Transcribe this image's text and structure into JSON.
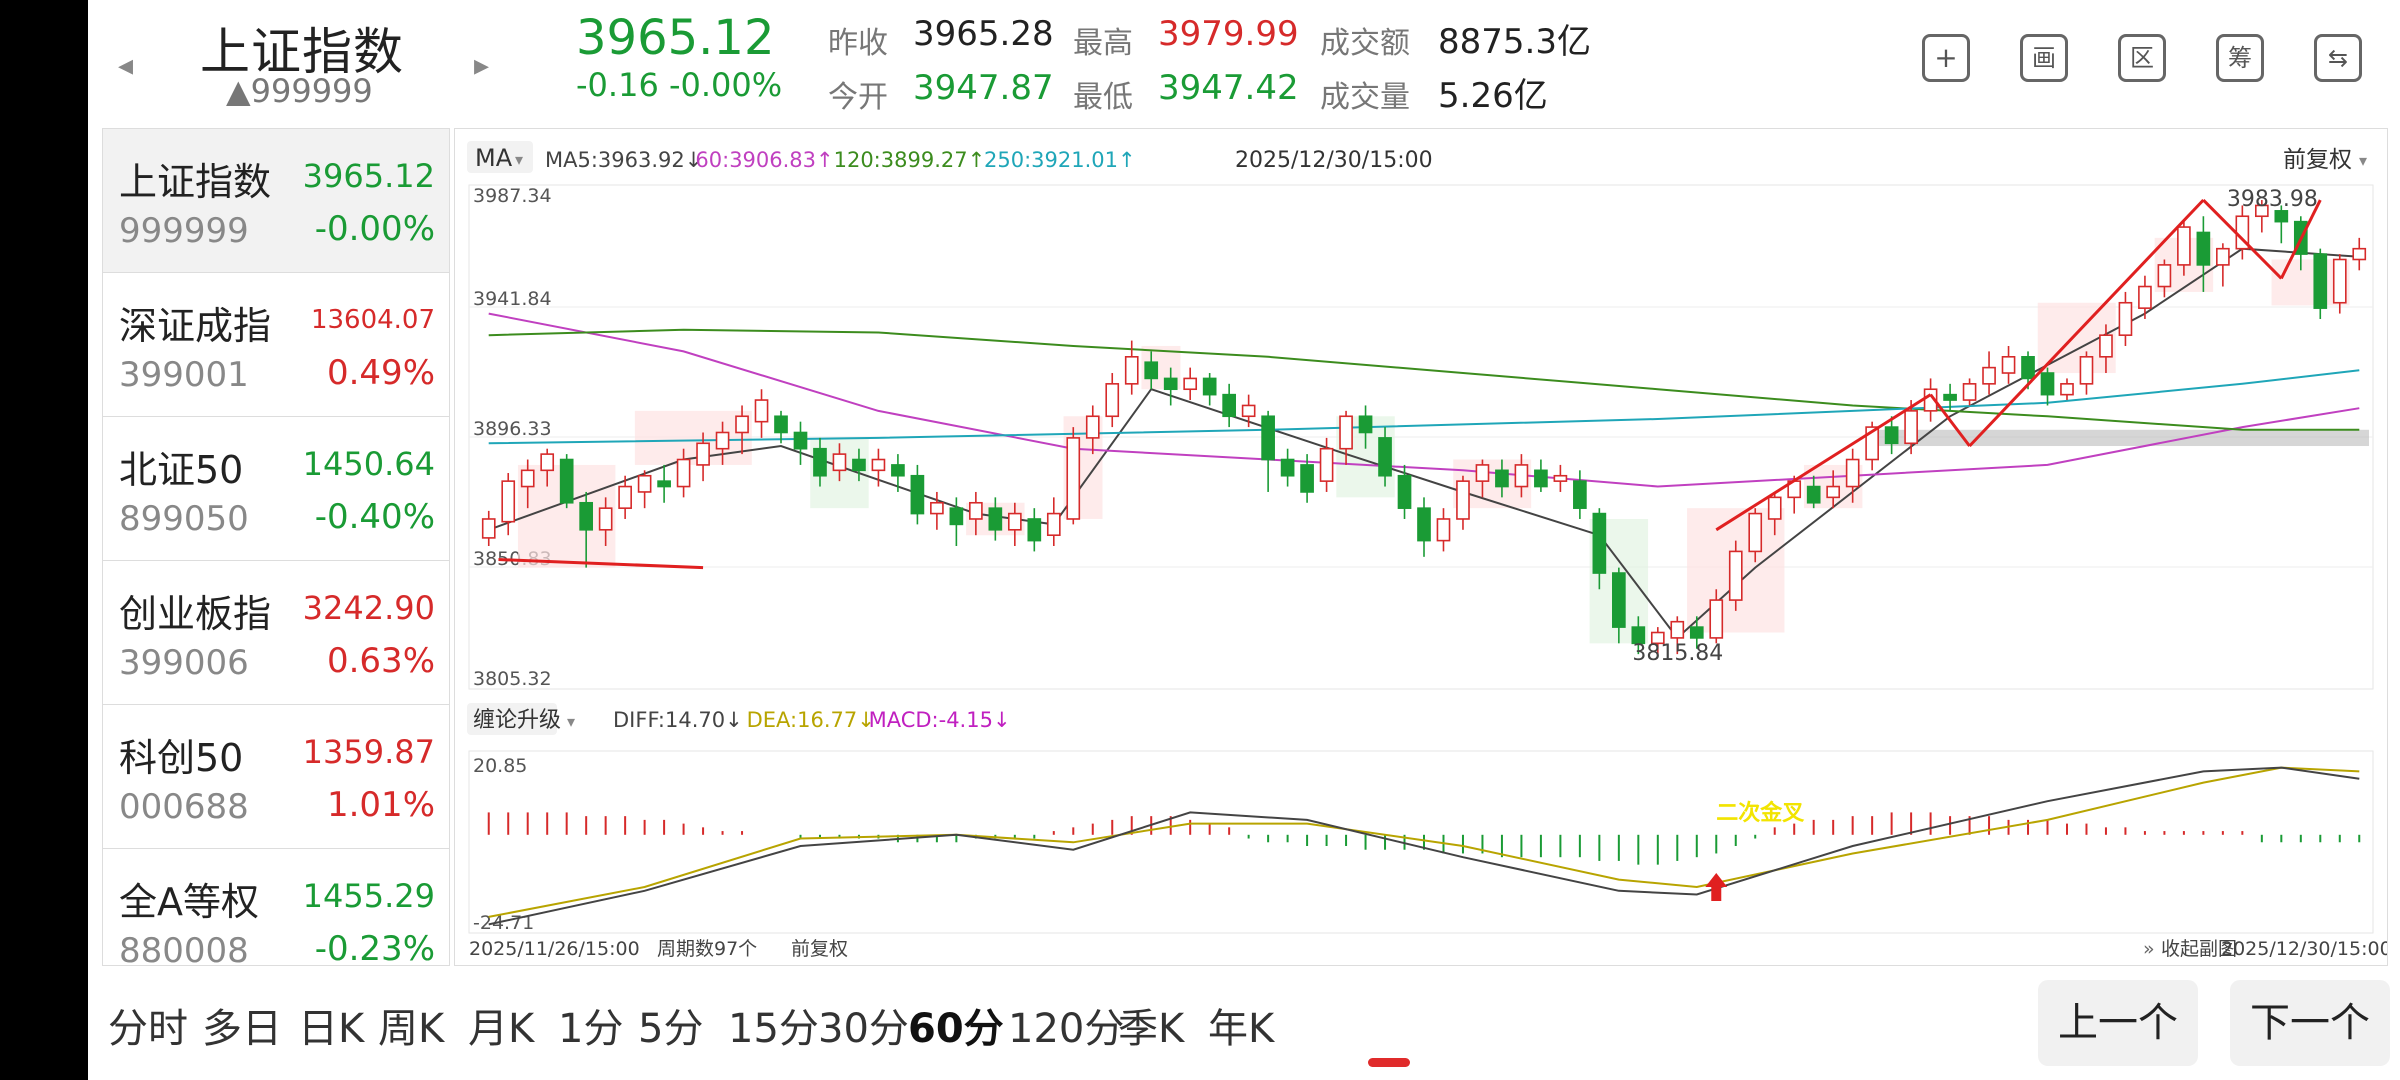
{
  "header": {
    "title": "上证指数",
    "code": "▲999999",
    "price": "3965.12",
    "change": "-0.16 -0.00%",
    "stats": [
      {
        "label": "昨收",
        "value": "3965.28",
        "color": "#222222"
      },
      {
        "label": "最高",
        "value": "3979.99",
        "color": "#d62a2a"
      },
      {
        "label": "成交额",
        "value": "8875.3亿",
        "color": "#222222"
      },
      {
        "label": "今开",
        "value": "3947.87",
        "color": "#1a9b35"
      },
      {
        "label": "最低",
        "value": "3947.42",
        "color": "#1a9b35"
      },
      {
        "label": "成交量",
        "value": "5.26亿",
        "color": "#222222"
      }
    ],
    "tools": [
      "plus-icon",
      "draw-icon",
      "range-icon",
      "chip-icon",
      "switch-device-icon"
    ],
    "tool_labels": [
      "+",
      "画",
      "区",
      "筹",
      "⇆"
    ]
  },
  "sidebar": {
    "items": [
      {
        "name": "上证指数",
        "price": "3965.12",
        "code": "999999",
        "pct": "-0.00%",
        "dir": "down"
      },
      {
        "name": "深证成指",
        "price": "13604.07",
        "code": "399001",
        "pct": "0.49%",
        "dir": "up"
      },
      {
        "name": "北证50",
        "price": "1450.64",
        "code": "899050",
        "pct": "-0.40%",
        "dir": "down"
      },
      {
        "name": "创业板指",
        "price": "3242.90",
        "code": "399006",
        "pct": "0.63%",
        "dir": "up"
      },
      {
        "name": "科创50",
        "price": "1359.87",
        "code": "000688",
        "pct": "1.01%",
        "dir": "up"
      },
      {
        "name": "全A等权",
        "price": "1455.29",
        "code": "880008",
        "pct": "-0.23%",
        "dir": "down"
      }
    ]
  },
  "chart_data": {
    "type": "candlestick",
    "ma_selector": "MA",
    "ma_legend": [
      {
        "text": "MA5:3963.92↓",
        "color": "#444444"
      },
      {
        "text": "60:3906.83↑",
        "color": "#c040c0"
      },
      {
        "text": "120:3899.27↑",
        "color": "#3c8c1e"
      },
      {
        "text": "250:3921.01↑",
        "color": "#1fa6b8"
      }
    ],
    "datetime": "2025/12/30/15:00",
    "adjust_mode": "前复权",
    "y_ticks": [
      "3987.34",
      "3941.84",
      "3896.33",
      "3850.83",
      "3805.32"
    ],
    "y_min": 3805.32,
    "y_max": 3987.34,
    "high_label": "3983.98",
    "low_label": "3815.84",
    "candles": [
      [
        3859,
        3866,
        3856,
        3869
      ],
      [
        3865,
        3880,
        3860,
        3883
      ],
      [
        3878,
        3884,
        3870,
        3888
      ],
      [
        3884,
        3890,
        3878,
        3892
      ],
      [
        3888,
        3872,
        3870,
        3890
      ],
      [
        3872,
        3862,
        3848,
        3876
      ],
      [
        3862,
        3870,
        3856,
        3874
      ],
      [
        3870,
        3878,
        3866,
        3882
      ],
      [
        3876,
        3882,
        3870,
        3884
      ],
      [
        3880,
        3878,
        3872,
        3886
      ],
      [
        3878,
        3888,
        3874,
        3892
      ],
      [
        3886,
        3894,
        3880,
        3898
      ],
      [
        3892,
        3898,
        3886,
        3902
      ],
      [
        3898,
        3904,
        3890,
        3908
      ],
      [
        3902,
        3910,
        3896,
        3914
      ],
      [
        3904,
        3898,
        3894,
        3906
      ],
      [
        3898,
        3892,
        3886,
        3902
      ],
      [
        3892,
        3882,
        3878,
        3896
      ],
      [
        3884,
        3890,
        3880,
        3894
      ],
      [
        3888,
        3884,
        3880,
        3892
      ],
      [
        3884,
        3888,
        3878,
        3892
      ],
      [
        3886,
        3882,
        3876,
        3890
      ],
      [
        3882,
        3868,
        3864,
        3886
      ],
      [
        3868,
        3872,
        3862,
        3876
      ],
      [
        3870,
        3864,
        3856,
        3874
      ],
      [
        3866,
        3872,
        3860,
        3876
      ],
      [
        3870,
        3862,
        3858,
        3874
      ],
      [
        3862,
        3868,
        3856,
        3872
      ],
      [
        3866,
        3858,
        3854,
        3870
      ],
      [
        3860,
        3868,
        3856,
        3874
      ],
      [
        3866,
        3896,
        3864,
        3900
      ],
      [
        3896,
        3904,
        3890,
        3908
      ],
      [
        3904,
        3916,
        3900,
        3920
      ],
      [
        3916,
        3926,
        3912,
        3932
      ],
      [
        3924,
        3918,
        3914,
        3928
      ],
      [
        3918,
        3914,
        3908,
        3922
      ],
      [
        3914,
        3918,
        3910,
        3922
      ],
      [
        3918,
        3912,
        3908,
        3920
      ],
      [
        3912,
        3904,
        3900,
        3916
      ],
      [
        3904,
        3908,
        3900,
        3912
      ],
      [
        3904,
        3888,
        3876,
        3906
      ],
      [
        3888,
        3882,
        3878,
        3892
      ],
      [
        3886,
        3876,
        3872,
        3890
      ],
      [
        3880,
        3892,
        3876,
        3896
      ],
      [
        3892,
        3904,
        3886,
        3906
      ],
      [
        3904,
        3898,
        3892,
        3908
      ],
      [
        3896,
        3882,
        3878,
        3900
      ],
      [
        3882,
        3870,
        3866,
        3886
      ],
      [
        3870,
        3858,
        3852,
        3874
      ],
      [
        3858,
        3866,
        3854,
        3870
      ],
      [
        3866,
        3880,
        3862,
        3882
      ],
      [
        3880,
        3886,
        3874,
        3888
      ],
      [
        3884,
        3878,
        3874,
        3888
      ],
      [
        3878,
        3886,
        3874,
        3890
      ],
      [
        3884,
        3878,
        3876,
        3888
      ],
      [
        3880,
        3882,
        3876,
        3886
      ],
      [
        3880,
        3870,
        3866,
        3884
      ],
      [
        3868,
        3846,
        3840,
        3870
      ],
      [
        3846,
        3826,
        3820,
        3848
      ],
      [
        3826,
        3820,
        3816,
        3830
      ],
      [
        3820,
        3824,
        3816,
        3826
      ],
      [
        3822,
        3828,
        3816,
        3830
      ],
      [
        3826,
        3822,
        3818,
        3830
      ],
      [
        3822,
        3836,
        3820,
        3840
      ],
      [
        3836,
        3854,
        3832,
        3858
      ],
      [
        3854,
        3868,
        3850,
        3870
      ],
      [
        3866,
        3874,
        3860,
        3876
      ],
      [
        3874,
        3880,
        3868,
        3882
      ],
      [
        3878,
        3872,
        3870,
        3882
      ],
      [
        3874,
        3878,
        3870,
        3884
      ],
      [
        3878,
        3888,
        3872,
        3892
      ],
      [
        3888,
        3900,
        3884,
        3902
      ],
      [
        3900,
        3894,
        3890,
        3904
      ],
      [
        3894,
        3906,
        3890,
        3910
      ],
      [
        3906,
        3914,
        3902,
        3918
      ],
      [
        3912,
        3910,
        3906,
        3916
      ],
      [
        3910,
        3916,
        3908,
        3918
      ],
      [
        3916,
        3922,
        3912,
        3928
      ],
      [
        3920,
        3926,
        3916,
        3930
      ],
      [
        3926,
        3918,
        3914,
        3928
      ],
      [
        3920,
        3912,
        3908,
        3922
      ],
      [
        3912,
        3916,
        3910,
        3918
      ],
      [
        3916,
        3926,
        3912,
        3928
      ],
      [
        3926,
        3934,
        3920,
        3938
      ],
      [
        3934,
        3946,
        3930,
        3950
      ],
      [
        3944,
        3952,
        3940,
        3956
      ],
      [
        3952,
        3960,
        3948,
        3962
      ],
      [
        3960,
        3974,
        3956,
        3976
      ],
      [
        3972,
        3960,
        3950,
        3978
      ],
      [
        3960,
        3966,
        3952,
        3968
      ],
      [
        3966,
        3978,
        3962,
        3982
      ],
      [
        3978,
        3982,
        3972,
        3984
      ],
      [
        3980,
        3976,
        3968,
        3982
      ],
      [
        3976,
        3964,
        3958,
        3978
      ],
      [
        3964,
        3944,
        3940,
        3966
      ],
      [
        3946,
        3962,
        3942,
        3964
      ],
      [
        3962,
        3966,
        3958,
        3970
      ]
    ],
    "ma_series": [
      {
        "name": "MA5",
        "color": "#444444",
        "points": [
          [
            0,
            3862
          ],
          [
            10,
            3888
          ],
          [
            15,
            3893
          ],
          [
            25,
            3868
          ],
          [
            29,
            3864
          ],
          [
            34,
            3914
          ],
          [
            44,
            3890
          ],
          [
            50,
            3876
          ],
          [
            57,
            3860
          ],
          [
            61,
            3822
          ],
          [
            65,
            3848
          ],
          [
            75,
            3904
          ],
          [
            85,
            3942
          ],
          [
            90,
            3966
          ],
          [
            96,
            3963
          ]
        ]
      },
      {
        "name": "60",
        "color": "#c040c0",
        "points": [
          [
            0,
            3942
          ],
          [
            10,
            3928
          ],
          [
            20,
            3906
          ],
          [
            30,
            3892
          ],
          [
            40,
            3888
          ],
          [
            50,
            3884
          ],
          [
            60,
            3878
          ],
          [
            70,
            3882
          ],
          [
            80,
            3886
          ],
          [
            90,
            3900
          ],
          [
            96,
            3907
          ]
        ]
      },
      {
        "name": "120",
        "color": "#3c8c1e",
        "points": [
          [
            0,
            3934
          ],
          [
            10,
            3936
          ],
          [
            20,
            3935
          ],
          [
            30,
            3930
          ],
          [
            40,
            3926
          ],
          [
            50,
            3920
          ],
          [
            60,
            3914
          ],
          [
            70,
            3908
          ],
          [
            80,
            3904
          ],
          [
            90,
            3899
          ],
          [
            96,
            3899
          ]
        ]
      },
      {
        "name": "250",
        "color": "#1fa6b8",
        "points": [
          [
            0,
            3894
          ],
          [
            20,
            3896
          ],
          [
            40,
            3899
          ],
          [
            60,
            3903
          ],
          [
            70,
            3906
          ],
          [
            80,
            3909
          ],
          [
            90,
            3916
          ],
          [
            96,
            3921
          ]
        ]
      }
    ],
    "macd": {
      "selector": "缠论升级",
      "legend": [
        {
          "text": "DIFF:14.70↓",
          "color": "#444444"
        },
        {
          "text": "DEA:16.77↓",
          "color": "#b8a400"
        },
        {
          "text": "MACD:-4.15↓",
          "color": "#c020c0"
        }
      ],
      "top_label": "20.85",
      "bottom_label": "-24.71",
      "y_max": 20.85,
      "y_min": -24.71,
      "hist": [
        6,
        6,
        6,
        6,
        6,
        5,
        5,
        5,
        4,
        4,
        3,
        2,
        1,
        1,
        0,
        0,
        -1,
        -1,
        -1,
        -1,
        -1,
        -2,
        -2,
        -2,
        -2,
        -1,
        -1,
        -1,
        -1,
        1,
        2,
        3,
        4,
        5,
        5,
        5,
        4,
        3,
        2,
        -1,
        -2,
        -2,
        -3,
        -3,
        -3,
        -4,
        -4,
        -4,
        -4,
        -5,
        -5,
        -5,
        -6,
        -6,
        -6,
        -6,
        -6,
        -7,
        -7,
        -8,
        -8,
        -7,
        -6,
        -5,
        -3,
        -1,
        2,
        3,
        4,
        4,
        5,
        5,
        6,
        6,
        6,
        5,
        5,
        5,
        4,
        4,
        4,
        3,
        3,
        2,
        2,
        1,
        1,
        1,
        1,
        1,
        1,
        -2,
        -2,
        -2,
        -2,
        -2,
        -2
      ],
      "diff": [
        [
          0,
          -24
        ],
        [
          8,
          -15
        ],
        [
          16,
          -3
        ],
        [
          24,
          0
        ],
        [
          30,
          -4
        ],
        [
          36,
          6
        ],
        [
          42,
          4
        ],
        [
          50,
          -6
        ],
        [
          58,
          -15
        ],
        [
          62,
          -16
        ],
        [
          70,
          -3
        ],
        [
          80,
          9
        ],
        [
          88,
          17
        ],
        [
          92,
          18
        ],
        [
          96,
          15
        ]
      ],
      "dea": [
        [
          0,
          -22
        ],
        [
          8,
          -14
        ],
        [
          16,
          -1
        ],
        [
          24,
          0
        ],
        [
          30,
          -2
        ],
        [
          36,
          3
        ],
        [
          42,
          3
        ],
        [
          50,
          -3
        ],
        [
          58,
          -12
        ],
        [
          62,
          -14
        ],
        [
          70,
          -5
        ],
        [
          80,
          4
        ],
        [
          88,
          14
        ],
        [
          92,
          18
        ],
        [
          96,
          17
        ]
      ],
      "annotation": "二次金叉"
    },
    "footer": {
      "start_date": "2025/11/26/15:00",
      "period_count": "周期数97个",
      "adjust": "前复权",
      "collapse": "收起副图",
      "end_date": "2025/12/30/15:00"
    }
  },
  "tabs": [
    "分时",
    "多日",
    "日K",
    "周K",
    "月K",
    "1分",
    "5分",
    "15分",
    "30分",
    "60分",
    "120分",
    "季K",
    "年K"
  ],
  "active_tab": "60分",
  "nav": {
    "prev": "上一个",
    "next": "下一个"
  },
  "colors": {
    "up": "#d62a2a",
    "down": "#1a9b35"
  }
}
